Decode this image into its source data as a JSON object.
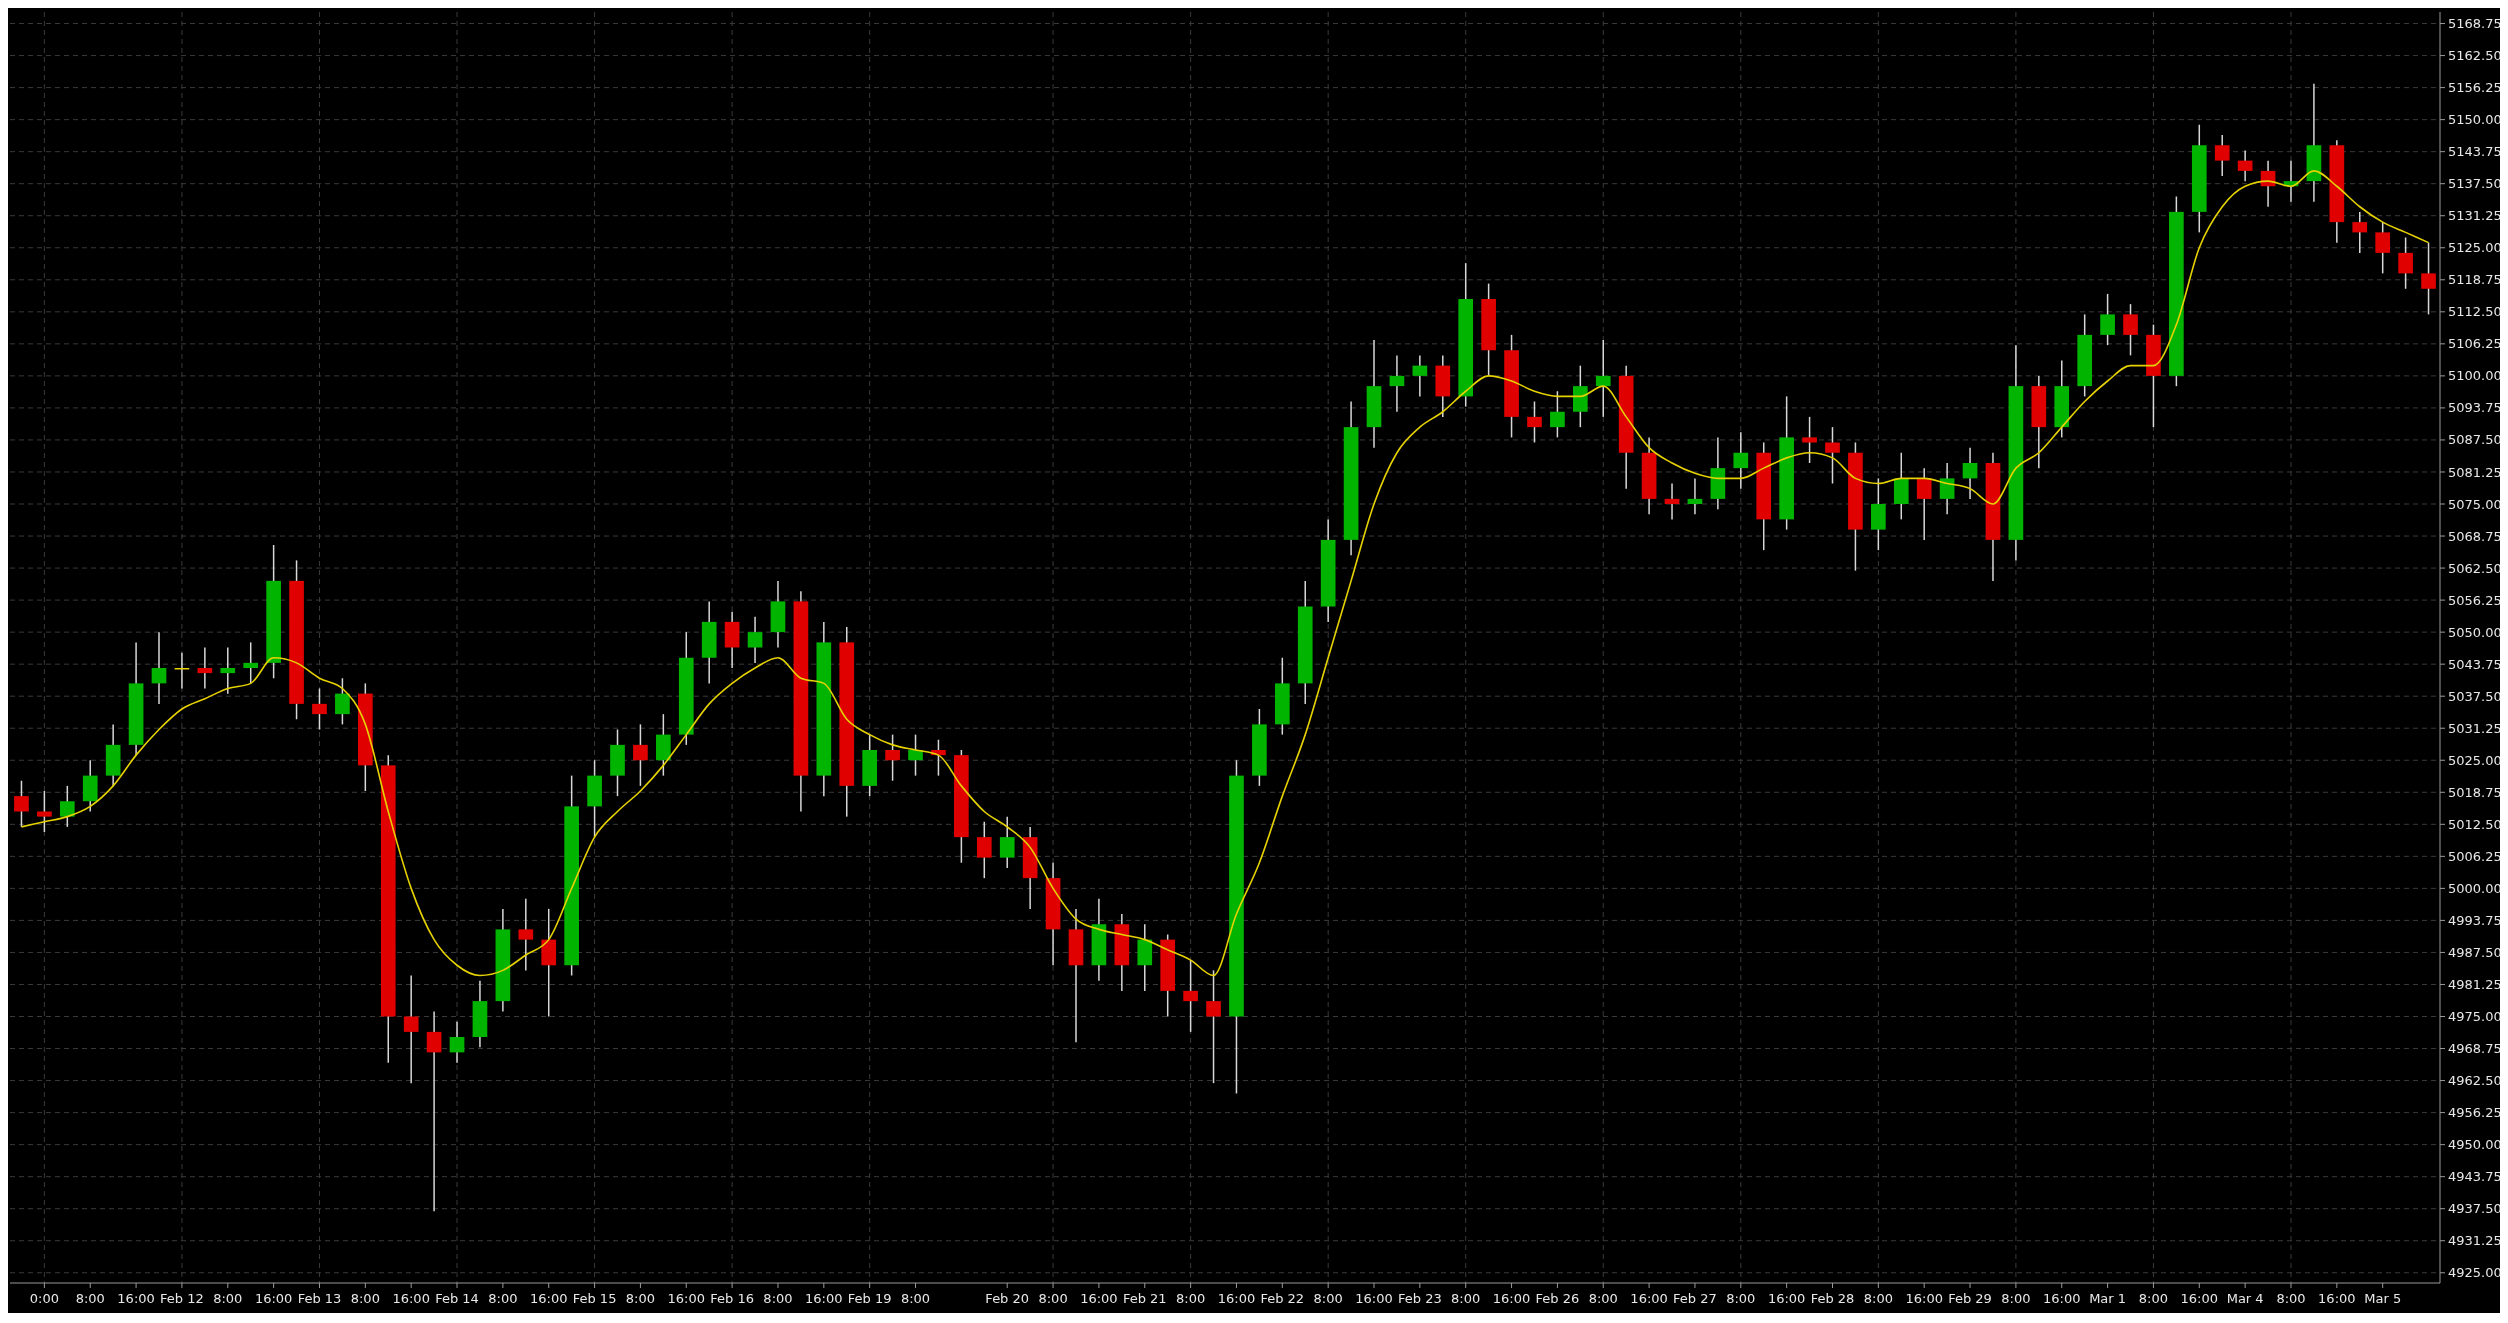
{
  "chart_data": {
    "type": "candlestick",
    "categories": [
      null,
      "0:00",
      null,
      "8:00",
      null,
      "16:00",
      null,
      "Feb 12",
      null,
      "8:00",
      null,
      "16:00",
      null,
      "Feb 13",
      null,
      "8:00",
      null,
      "16:00",
      null,
      "Feb 14",
      null,
      "8:00",
      null,
      "16:00",
      null,
      "Feb 15",
      null,
      "8:00",
      null,
      "16:00",
      null,
      "Feb 16",
      null,
      "8:00",
      null,
      "16:00",
      null,
      "Feb 19",
      null,
      "8:00",
      null,
      null,
      null,
      "Feb 20",
      null,
      "8:00",
      null,
      "16:00",
      null,
      "Feb 21",
      null,
      "8:00",
      null,
      "16:00",
      null,
      "Feb 22",
      null,
      "8:00",
      null,
      "16:00",
      null,
      "Feb 23",
      null,
      "8:00",
      null,
      "16:00",
      null,
      "Feb 26",
      null,
      "8:00",
      null,
      "16:00",
      null,
      "Feb 27",
      null,
      "8:00",
      null,
      "16:00",
      null,
      "Feb 28",
      null,
      "8:00",
      null,
      "16:00",
      null,
      "Feb 29",
      null,
      "8:00",
      null,
      "16:00",
      null,
      "Mar 1",
      null,
      "8:00",
      null,
      "16:00",
      null,
      "Mar 4",
      null,
      "8:00",
      null,
      "16:00",
      null,
      "Mar 5",
      null,
      null
    ],
    "ohlc": [
      [
        5018,
        5021,
        5012,
        5015
      ],
      [
        5015,
        5019,
        5011,
        5014
      ],
      [
        5014,
        5020,
        5012,
        5017
      ],
      [
        5017,
        5025,
        5015,
        5022
      ],
      [
        5022,
        5032,
        5020,
        5028
      ],
      [
        5028,
        5048,
        5026,
        5040
      ],
      [
        5040,
        5050,
        5036,
        5043
      ],
      [
        5043,
        5046,
        5039,
        5043
      ],
      [
        5043,
        5047,
        5039,
        5042
      ],
      [
        5042,
        5047,
        5038,
        5043
      ],
      [
        5043,
        5048,
        5040,
        5044
      ],
      [
        5044,
        5067,
        5041,
        5060
      ],
      [
        5060,
        5064,
        5033,
        5036
      ],
      [
        5036,
        5039,
        5031,
        5034
      ],
      [
        5034,
        5041,
        5032,
        5038
      ],
      [
        5038,
        5040,
        5019,
        5024
      ],
      [
        5024,
        5026,
        4966,
        4975
      ],
      [
        4975,
        4983,
        4962,
        4972
      ],
      [
        4972,
        4976,
        4937,
        4968
      ],
      [
        4968,
        4974,
        4966,
        4971
      ],
      [
        4971,
        4982,
        4969,
        4978
      ],
      [
        4978,
        4996,
        4976,
        4992
      ],
      [
        4992,
        4998,
        4984,
        4990
      ],
      [
        4990,
        4996,
        4975,
        4985
      ],
      [
        4985,
        5022,
        4983,
        5016
      ],
      [
        5016,
        5025,
        5010,
        5022
      ],
      [
        5022,
        5031,
        5018,
        5028
      ],
      [
        5028,
        5032,
        5020,
        5025
      ],
      [
        5025,
        5034,
        5022,
        5030
      ],
      [
        5030,
        5050,
        5028,
        5045
      ],
      [
        5045,
        5056,
        5040,
        5052
      ],
      [
        5052,
        5054,
        5043,
        5047
      ],
      [
        5047,
        5053,
        5044,
        5050
      ],
      [
        5050,
        5060,
        5047,
        5056
      ],
      [
        5056,
        5058,
        5015,
        5022
      ],
      [
        5022,
        5052,
        5018,
        5048
      ],
      [
        5048,
        5051,
        5014,
        5020
      ],
      [
        5020,
        5030,
        5018,
        5027
      ],
      [
        5027,
        5030,
        5021,
        5025
      ],
      [
        5025,
        5030,
        5022,
        5027
      ],
      [
        5027,
        5029,
        5022,
        5026
      ],
      [
        5026,
        5027,
        5005,
        5010
      ],
      [
        5010,
        5013,
        5002,
        5006
      ],
      [
        5006,
        5014,
        5004,
        5010
      ],
      [
        5010,
        5012,
        4996,
        5002
      ],
      [
        5002,
        5005,
        4985,
        4992
      ],
      [
        4992,
        4996,
        4970,
        4985
      ],
      [
        4985,
        4998,
        4982,
        4993
      ],
      [
        4993,
        4995,
        4980,
        4985
      ],
      [
        4985,
        4993,
        4980,
        4990
      ],
      [
        4990,
        4991,
        4975,
        4980
      ],
      [
        4980,
        4986,
        4972,
        4978
      ],
      [
        4978,
        4984,
        4962,
        4975
      ],
      [
        4975,
        5025,
        4960,
        5022
      ],
      [
        5022,
        5035,
        5020,
        5032
      ],
      [
        5032,
        5045,
        5030,
        5040
      ],
      [
        5040,
        5060,
        5036,
        5055
      ],
      [
        5055,
        5072,
        5052,
        5068
      ],
      [
        5068,
        5095,
        5065,
        5090
      ],
      [
        5090,
        5107,
        5086,
        5098
      ],
      [
        5098,
        5104,
        5093,
        5100
      ],
      [
        5100,
        5104,
        5096,
        5102
      ],
      [
        5102,
        5104,
        5092,
        5096
      ],
      [
        5096,
        5122,
        5094,
        5115
      ],
      [
        5115,
        5118,
        5100,
        5105
      ],
      [
        5105,
        5108,
        5088,
        5092
      ],
      [
        5092,
        5095,
        5087,
        5090
      ],
      [
        5090,
        5097,
        5088,
        5093
      ],
      [
        5093,
        5102,
        5090,
        5098
      ],
      [
        5098,
        5107,
        5092,
        5100
      ],
      [
        5100,
        5102,
        5078,
        5085
      ],
      [
        5085,
        5088,
        5073,
        5076
      ],
      [
        5076,
        5079,
        5072,
        5075
      ],
      [
        5075,
        5080,
        5073,
        5076
      ],
      [
        5076,
        5088,
        5074,
        5082
      ],
      [
        5082,
        5089,
        5078,
        5085
      ],
      [
        5085,
        5087,
        5066,
        5072
      ],
      [
        5072,
        5096,
        5070,
        5088
      ],
      [
        5088,
        5092,
        5083,
        5087
      ],
      [
        5087,
        5090,
        5079,
        5085
      ],
      [
        5085,
        5087,
        5062,
        5070
      ],
      [
        5070,
        5080,
        5066,
        5075
      ],
      [
        5075,
        5085,
        5072,
        5080
      ],
      [
        5080,
        5082,
        5068,
        5076
      ],
      [
        5076,
        5083,
        5073,
        5080
      ],
      [
        5080,
        5086,
        5076,
        5083
      ],
      [
        5083,
        5085,
        5060,
        5068
      ],
      [
        5068,
        5106,
        5064,
        5098
      ],
      [
        5098,
        5100,
        5082,
        5090
      ],
      [
        5090,
        5103,
        5088,
        5098
      ],
      [
        5098,
        5112,
        5096,
        5108
      ],
      [
        5108,
        5116,
        5106,
        5112
      ],
      [
        5112,
        5114,
        5104,
        5108
      ],
      [
        5108,
        5110,
        5090,
        5100
      ],
      [
        5100,
        5135,
        5098,
        5132
      ],
      [
        5132,
        5149,
        5128,
        5145
      ],
      [
        5145,
        5147,
        5139,
        5142
      ],
      [
        5142,
        5144,
        5138,
        5140
      ],
      [
        5140,
        5142,
        5133,
        5137
      ],
      [
        5137,
        5142,
        5134,
        5138
      ],
      [
        5138,
        5157,
        5134,
        5145
      ],
      [
        5145,
        5146,
        5126,
        5130
      ],
      [
        5130,
        5132,
        5124,
        5128
      ],
      [
        5128,
        5130,
        5120,
        5124
      ],
      [
        5124,
        5127,
        5117,
        5120
      ],
      [
        5120,
        5126,
        5112,
        5117
      ]
    ],
    "series": [
      {
        "type": "line",
        "color": "#e6d200",
        "values": [
          5012,
          5013,
          5014,
          5016,
          5020,
          5026,
          5031,
          5035,
          5037,
          5039,
          5040,
          5045,
          5044,
          5041,
          5039,
          5032,
          5015,
          5000,
          4990,
          4985,
          4983,
          4984,
          4987,
          4990,
          5000,
          5010,
          5015,
          5019,
          5024,
          5030,
          5036,
          5040,
          5043,
          5045,
          5041,
          5040,
          5033,
          5030,
          5028,
          5027,
          5026,
          5020,
          5015,
          5012,
          5008,
          5000,
          4994,
          4992,
          4991,
          4990,
          4988,
          4986,
          4983,
          4995,
          5005,
          5018,
          5030,
          5045,
          5060,
          5075,
          5085,
          5090,
          5093,
          5097,
          5100,
          5099,
          5097,
          5096,
          5096,
          5098,
          5092,
          5086,
          5083,
          5081,
          5080,
          5080,
          5082,
          5084,
          5085,
          5084,
          5080,
          5079,
          5080,
          5080,
          5079,
          5078,
          5075,
          5082,
          5085,
          5090,
          5095,
          5099,
          5102,
          5102,
          5110,
          5125,
          5133,
          5137,
          5138,
          5137,
          5140,
          5137,
          5133,
          5130,
          5128,
          5126
        ]
      }
    ],
    "ylim": [
      4923,
      5171
    ],
    "yticks": [
      {
        "value": 4925,
        "label": "4925.00"
      },
      {
        "value": 4931.25,
        "label": "4931.25"
      },
      {
        "value": 4937.5,
        "label": "4937.50"
      },
      {
        "value": 4943.75,
        "label": "4943.75"
      },
      {
        "value": 4950,
        "label": "4950.00"
      },
      {
        "value": 4956.25,
        "label": "4956.25"
      },
      {
        "value": 4962.5,
        "label": "4962.50"
      },
      {
        "value": 4968.75,
        "label": "4968.75"
      },
      {
        "value": 4975,
        "label": "4975.00"
      },
      {
        "value": 4981.25,
        "label": "4981.25"
      },
      {
        "value": 4987.5,
        "label": "4987.50"
      },
      {
        "value": 4993.75,
        "label": "4993.75"
      },
      {
        "value": 5000,
        "label": "5000.00"
      },
      {
        "value": 5006.25,
        "label": "5006.25"
      },
      {
        "value": 5012.5,
        "label": "5012.50"
      },
      {
        "value": 5018.75,
        "label": "5018.75"
      },
      {
        "value": 5025,
        "label": "5025.00"
      },
      {
        "value": 5031.25,
        "label": "5031.25"
      },
      {
        "value": 5037.5,
        "label": "5037.50"
      },
      {
        "value": 5043.75,
        "label": "5043.75"
      },
      {
        "value": 5050,
        "label": "5050.00"
      },
      {
        "value": 5056.25,
        "label": "5056.25"
      },
      {
        "value": 5062.5,
        "label": "5062.50"
      },
      {
        "value": 5068.75,
        "label": "5068.75"
      },
      {
        "value": 5075,
        "label": "5075.00"
      },
      {
        "value": 5081.25,
        "label": "5081.25"
      },
      {
        "value": 5087.5,
        "label": "5087.50"
      },
      {
        "value": 5093.75,
        "label": "5093.75"
      },
      {
        "value": 5100,
        "label": "5100.00"
      },
      {
        "value": 5106.25,
        "label": "5106.25"
      },
      {
        "value": 5112.5,
        "label": "5112.50"
      },
      {
        "value": 5118.75,
        "label": "5118.75"
      },
      {
        "value": 5125,
        "label": "5125.00"
      },
      {
        "value": 5131.25,
        "label": "5131.25"
      },
      {
        "value": 5137.5,
        "label": "5137.50"
      },
      {
        "value": 5143.75,
        "label": "5143.75"
      },
      {
        "value": 5150,
        "label": "5150.00"
      },
      {
        "value": 5156.25,
        "label": "5156.25"
      },
      {
        "value": 5162.5,
        "label": "5162.50"
      },
      {
        "value": 5168.75,
        "label": "5168.75"
      }
    ],
    "grid": true
  }
}
